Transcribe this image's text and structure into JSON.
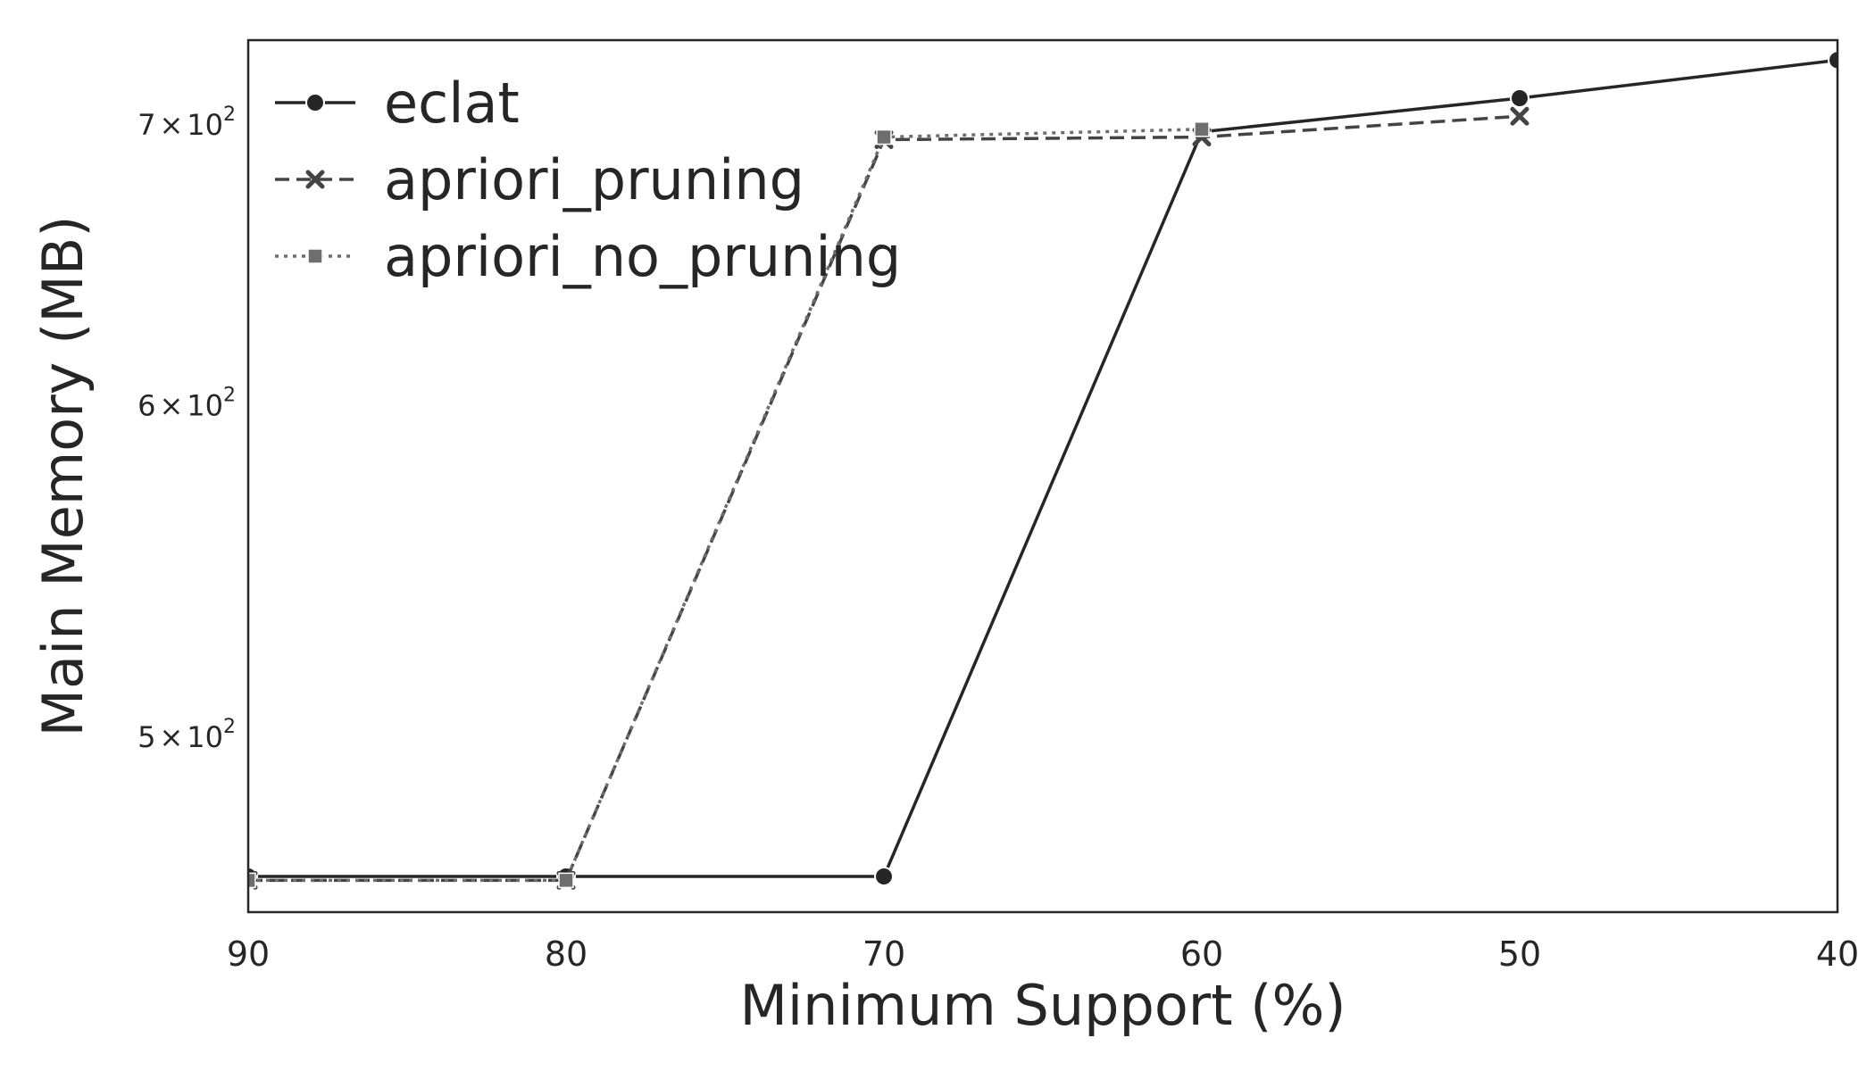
{
  "chart_data": {
    "type": "line",
    "xlabel": "Minimum Support (%)",
    "ylabel": "Main Memory (MB)",
    "x": [
      90,
      80,
      70,
      60,
      50,
      40
    ],
    "xlim": [
      90,
      40
    ],
    "x_inverted": true,
    "y_scale": "log",
    "ylim": [
      454,
      733
    ],
    "yticks": [
      {
        "value": 500,
        "mantissa": "5",
        "base": "10",
        "exp": "2"
      },
      {
        "value": 600,
        "mantissa": "6",
        "base": "10",
        "exp": "2"
      },
      {
        "value": 700,
        "mantissa": "7",
        "base": "10",
        "exp": "2"
      }
    ],
    "grid": false,
    "legend_position": "top-left",
    "series": [
      {
        "name": "eclat",
        "values": [
          463,
          463,
          463,
          697,
          710,
          725
        ],
        "color": "#262626",
        "dash": "solid",
        "marker": "circle"
      },
      {
        "name": "apriori_pruning",
        "values": [
          462,
          462,
          694,
          695,
          703,
          null
        ],
        "color": "#444444",
        "dash": "dashed",
        "marker": "x"
      },
      {
        "name": "apriori_no_pruning",
        "values": [
          462,
          462,
          695,
          698,
          null,
          null
        ],
        "color": "#6e6e6e",
        "dash": "dotted",
        "marker": "square"
      }
    ]
  }
}
